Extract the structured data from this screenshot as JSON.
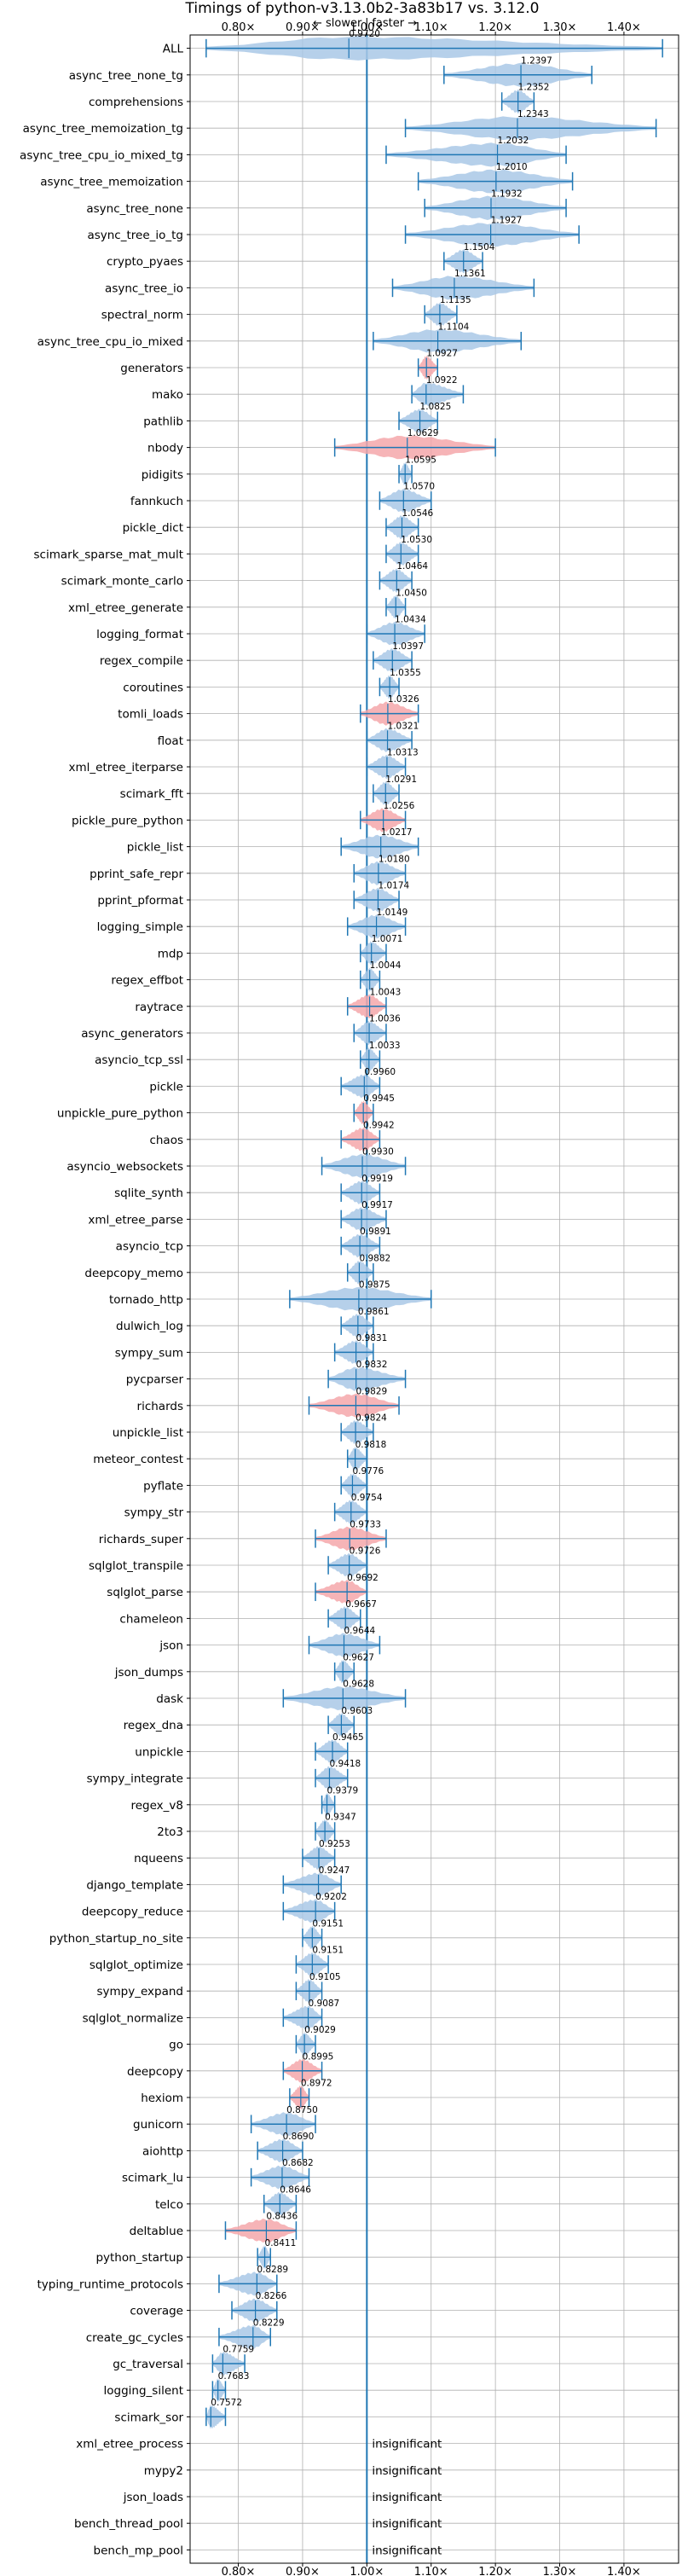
{
  "chart_data": {
    "type": "violin",
    "orientation": "horizontal",
    "title": "Timings of python-v3.13.0b2-3a83b17 vs. 3.12.0",
    "direction_labels": {
      "slower": "← slower",
      "separator": "|",
      "faster": "faster →"
    },
    "xlim": [
      0.725,
      1.485
    ],
    "reference": 1.0,
    "x_ticks": [
      {
        "value": 0.8,
        "label": "0.80×"
      },
      {
        "value": 0.9,
        "label": "0.90×"
      },
      {
        "value": 1.0,
        "label": "1.00×"
      },
      {
        "value": 1.1,
        "label": "1.10×"
      },
      {
        "value": 1.2,
        "label": "1.20×"
      },
      {
        "value": 1.3,
        "label": "1.30×"
      },
      {
        "value": 1.4,
        "label": "1.40×"
      }
    ],
    "insignificant_label": "insignificant",
    "colors": {
      "faster": "#a9c8e6",
      "slower": "#f4a7aa",
      "line": "#1f77b4",
      "grid": "#b0b0b0"
    },
    "benchmarks": [
      {
        "name": "ALL",
        "value": 0.972,
        "value_label": "0.9720",
        "min": 0.75,
        "max": 1.46,
        "status": "faster"
      },
      {
        "name": "async_tree_none_tg",
        "value": 1.2397,
        "value_label": "1.2397",
        "min": 1.12,
        "max": 1.35,
        "status": "faster"
      },
      {
        "name": "comprehensions",
        "value": 1.2352,
        "value_label": "1.2352",
        "min": 1.21,
        "max": 1.26,
        "status": "faster"
      },
      {
        "name": "async_tree_memoization_tg",
        "value": 1.2343,
        "value_label": "1.2343",
        "min": 1.06,
        "max": 1.45,
        "status": "faster"
      },
      {
        "name": "async_tree_cpu_io_mixed_tg",
        "value": 1.2032,
        "value_label": "1.2032",
        "min": 1.03,
        "max": 1.31,
        "status": "faster"
      },
      {
        "name": "async_tree_memoization",
        "value": 1.201,
        "value_label": "1.2010",
        "min": 1.08,
        "max": 1.32,
        "status": "faster"
      },
      {
        "name": "async_tree_none",
        "value": 1.1932,
        "value_label": "1.1932",
        "min": 1.09,
        "max": 1.31,
        "status": "faster"
      },
      {
        "name": "async_tree_io_tg",
        "value": 1.1927,
        "value_label": "1.1927",
        "min": 1.06,
        "max": 1.33,
        "status": "faster"
      },
      {
        "name": "crypto_pyaes",
        "value": 1.1504,
        "value_label": "1.1504",
        "min": 1.12,
        "max": 1.18,
        "status": "faster"
      },
      {
        "name": "async_tree_io",
        "value": 1.1361,
        "value_label": "1.1361",
        "min": 1.04,
        "max": 1.26,
        "status": "faster"
      },
      {
        "name": "spectral_norm",
        "value": 1.1135,
        "value_label": "1.1135",
        "min": 1.09,
        "max": 1.14,
        "status": "faster"
      },
      {
        "name": "async_tree_cpu_io_mixed",
        "value": 1.1104,
        "value_label": "1.1104",
        "min": 1.01,
        "max": 1.24,
        "status": "faster"
      },
      {
        "name": "generators",
        "value": 1.0927,
        "value_label": "1.0927",
        "min": 1.08,
        "max": 1.11,
        "status": "slower"
      },
      {
        "name": "mako",
        "value": 1.0922,
        "value_label": "1.0922",
        "min": 1.07,
        "max": 1.15,
        "status": "faster"
      },
      {
        "name": "pathlib",
        "value": 1.0825,
        "value_label": "1.0825",
        "min": 1.05,
        "max": 1.11,
        "status": "faster"
      },
      {
        "name": "nbody",
        "value": 1.0629,
        "value_label": "1.0629",
        "min": 0.95,
        "max": 1.2,
        "status": "slower"
      },
      {
        "name": "pidigits",
        "value": 1.0595,
        "value_label": "1.0595",
        "min": 1.05,
        "max": 1.07,
        "status": "faster"
      },
      {
        "name": "fannkuch",
        "value": 1.057,
        "value_label": "1.0570",
        "min": 1.02,
        "max": 1.1,
        "status": "faster"
      },
      {
        "name": "pickle_dict",
        "value": 1.0546,
        "value_label": "1.0546",
        "min": 1.03,
        "max": 1.08,
        "status": "faster"
      },
      {
        "name": "scimark_sparse_mat_mult",
        "value": 1.053,
        "value_label": "1.0530",
        "min": 1.03,
        "max": 1.08,
        "status": "faster"
      },
      {
        "name": "scimark_monte_carlo",
        "value": 1.0464,
        "value_label": "1.0464",
        "min": 1.02,
        "max": 1.07,
        "status": "faster"
      },
      {
        "name": "xml_etree_generate",
        "value": 1.045,
        "value_label": "1.0450",
        "min": 1.03,
        "max": 1.06,
        "status": "faster"
      },
      {
        "name": "logging_format",
        "value": 1.0434,
        "value_label": "1.0434",
        "min": 1.0,
        "max": 1.09,
        "status": "faster"
      },
      {
        "name": "regex_compile",
        "value": 1.0397,
        "value_label": "1.0397",
        "min": 1.01,
        "max": 1.07,
        "status": "faster"
      },
      {
        "name": "coroutines",
        "value": 1.0355,
        "value_label": "1.0355",
        "min": 1.02,
        "max": 1.05,
        "status": "faster"
      },
      {
        "name": "tomli_loads",
        "value": 1.0326,
        "value_label": "1.0326",
        "min": 0.99,
        "max": 1.08,
        "status": "slower"
      },
      {
        "name": "float",
        "value": 1.0321,
        "value_label": "1.0321",
        "min": 1.0,
        "max": 1.07,
        "status": "faster"
      },
      {
        "name": "xml_etree_iterparse",
        "value": 1.0313,
        "value_label": "1.0313",
        "min": 1.0,
        "max": 1.06,
        "status": "faster"
      },
      {
        "name": "scimark_fft",
        "value": 1.0291,
        "value_label": "1.0291",
        "min": 1.01,
        "max": 1.05,
        "status": "faster"
      },
      {
        "name": "pickle_pure_python",
        "value": 1.0256,
        "value_label": "1.0256",
        "min": 0.99,
        "max": 1.06,
        "status": "slower"
      },
      {
        "name": "pickle_list",
        "value": 1.0217,
        "value_label": "1.0217",
        "min": 0.96,
        "max": 1.08,
        "status": "faster"
      },
      {
        "name": "pprint_safe_repr",
        "value": 1.018,
        "value_label": "1.0180",
        "min": 0.98,
        "max": 1.06,
        "status": "faster"
      },
      {
        "name": "pprint_pformat",
        "value": 1.0174,
        "value_label": "1.0174",
        "min": 0.98,
        "max": 1.05,
        "status": "faster"
      },
      {
        "name": "logging_simple",
        "value": 1.0149,
        "value_label": "1.0149",
        "min": 0.97,
        "max": 1.06,
        "status": "faster"
      },
      {
        "name": "mdp",
        "value": 1.0071,
        "value_label": "1.0071",
        "min": 0.99,
        "max": 1.03,
        "status": "faster"
      },
      {
        "name": "regex_effbot",
        "value": 1.0044,
        "value_label": "1.0044",
        "min": 0.99,
        "max": 1.02,
        "status": "faster"
      },
      {
        "name": "raytrace",
        "value": 1.0043,
        "value_label": "1.0043",
        "min": 0.97,
        "max": 1.03,
        "status": "slower"
      },
      {
        "name": "async_generators",
        "value": 1.0036,
        "value_label": "1.0036",
        "min": 0.98,
        "max": 1.03,
        "status": "faster"
      },
      {
        "name": "asyncio_tcp_ssl",
        "value": 1.0033,
        "value_label": "1.0033",
        "min": 0.99,
        "max": 1.02,
        "status": "faster"
      },
      {
        "name": "pickle",
        "value": 0.996,
        "value_label": "0.9960",
        "min": 0.96,
        "max": 1.02,
        "status": "faster"
      },
      {
        "name": "unpickle_pure_python",
        "value": 0.9945,
        "value_label": "0.9945",
        "min": 0.98,
        "max": 1.01,
        "status": "slower"
      },
      {
        "name": "chaos",
        "value": 0.9942,
        "value_label": "0.9942",
        "min": 0.96,
        "max": 1.02,
        "status": "slower"
      },
      {
        "name": "asyncio_websockets",
        "value": 0.993,
        "value_label": "0.9930",
        "min": 0.93,
        "max": 1.06,
        "status": "faster"
      },
      {
        "name": "sqlite_synth",
        "value": 0.9919,
        "value_label": "0.9919",
        "min": 0.96,
        "max": 1.02,
        "status": "faster"
      },
      {
        "name": "xml_etree_parse",
        "value": 0.9917,
        "value_label": "0.9917",
        "min": 0.96,
        "max": 1.03,
        "status": "faster"
      },
      {
        "name": "asyncio_tcp",
        "value": 0.9891,
        "value_label": "0.9891",
        "min": 0.96,
        "max": 1.02,
        "status": "faster"
      },
      {
        "name": "deepcopy_memo",
        "value": 0.9882,
        "value_label": "0.9882",
        "min": 0.97,
        "max": 1.01,
        "status": "faster"
      },
      {
        "name": "tornado_http",
        "value": 0.9875,
        "value_label": "0.9875",
        "min": 0.88,
        "max": 1.1,
        "status": "faster"
      },
      {
        "name": "dulwich_log",
        "value": 0.9861,
        "value_label": "0.9861",
        "min": 0.96,
        "max": 1.01,
        "status": "faster"
      },
      {
        "name": "sympy_sum",
        "value": 0.9831,
        "value_label": "0.9831",
        "min": 0.95,
        "max": 1.01,
        "status": "faster"
      },
      {
        "name": "pycparser",
        "value": 0.9832,
        "value_label": "0.9832",
        "min": 0.94,
        "max": 1.06,
        "status": "faster"
      },
      {
        "name": "richards",
        "value": 0.9829,
        "value_label": "0.9829",
        "min": 0.91,
        "max": 1.05,
        "status": "slower"
      },
      {
        "name": "unpickle_list",
        "value": 0.9824,
        "value_label": "0.9824",
        "min": 0.96,
        "max": 1.01,
        "status": "faster"
      },
      {
        "name": "meteor_contest",
        "value": 0.9818,
        "value_label": "0.9818",
        "min": 0.97,
        "max": 1.0,
        "status": "faster"
      },
      {
        "name": "pyflate",
        "value": 0.9776,
        "value_label": "0.9776",
        "min": 0.96,
        "max": 1.0,
        "status": "faster"
      },
      {
        "name": "sympy_str",
        "value": 0.9754,
        "value_label": "0.9754",
        "min": 0.95,
        "max": 1.0,
        "status": "faster"
      },
      {
        "name": "richards_super",
        "value": 0.9733,
        "value_label": "0.9733",
        "min": 0.92,
        "max": 1.03,
        "status": "slower"
      },
      {
        "name": "sqlglot_transpile",
        "value": 0.9726,
        "value_label": "0.9726",
        "min": 0.94,
        "max": 1.0,
        "status": "faster"
      },
      {
        "name": "sqlglot_parse",
        "value": 0.9692,
        "value_label": "0.9692",
        "min": 0.92,
        "max": 1.0,
        "status": "slower"
      },
      {
        "name": "chameleon",
        "value": 0.9667,
        "value_label": "0.9667",
        "min": 0.94,
        "max": 0.99,
        "status": "faster"
      },
      {
        "name": "json",
        "value": 0.9644,
        "value_label": "0.9644",
        "min": 0.91,
        "max": 1.02,
        "status": "faster"
      },
      {
        "name": "json_dumps",
        "value": 0.9627,
        "value_label": "0.9627",
        "min": 0.95,
        "max": 0.98,
        "status": "faster"
      },
      {
        "name": "dask",
        "value": 0.9628,
        "value_label": "0.9628",
        "min": 0.87,
        "max": 1.06,
        "status": "faster"
      },
      {
        "name": "regex_dna",
        "value": 0.9603,
        "value_label": "0.9603",
        "min": 0.94,
        "max": 0.98,
        "status": "faster"
      },
      {
        "name": "unpickle",
        "value": 0.9465,
        "value_label": "0.9465",
        "min": 0.92,
        "max": 0.97,
        "status": "faster"
      },
      {
        "name": "sympy_integrate",
        "value": 0.9418,
        "value_label": "0.9418",
        "min": 0.92,
        "max": 0.97,
        "status": "faster"
      },
      {
        "name": "regex_v8",
        "value": 0.9379,
        "value_label": "0.9379",
        "min": 0.93,
        "max": 0.95,
        "status": "faster"
      },
      {
        "name": "2to3",
        "value": 0.9347,
        "value_label": "0.9347",
        "min": 0.92,
        "max": 0.95,
        "status": "faster"
      },
      {
        "name": "nqueens",
        "value": 0.9253,
        "value_label": "0.9253",
        "min": 0.9,
        "max": 0.95,
        "status": "faster"
      },
      {
        "name": "django_template",
        "value": 0.9247,
        "value_label": "0.9247",
        "min": 0.87,
        "max": 0.96,
        "status": "faster"
      },
      {
        "name": "deepcopy_reduce",
        "value": 0.9202,
        "value_label": "0.9202",
        "min": 0.87,
        "max": 0.95,
        "status": "faster"
      },
      {
        "name": "python_startup_no_site",
        "value": 0.9151,
        "value_label": "0.9151",
        "min": 0.9,
        "max": 0.93,
        "status": "faster"
      },
      {
        "name": "sqlglot_optimize",
        "value": 0.9151,
        "value_label": "0.9151",
        "min": 0.89,
        "max": 0.94,
        "status": "faster"
      },
      {
        "name": "sympy_expand",
        "value": 0.9105,
        "value_label": "0.9105",
        "min": 0.89,
        "max": 0.93,
        "status": "faster"
      },
      {
        "name": "sqlglot_normalize",
        "value": 0.9087,
        "value_label": "0.9087",
        "min": 0.87,
        "max": 0.93,
        "status": "faster"
      },
      {
        "name": "go",
        "value": 0.9029,
        "value_label": "0.9029",
        "min": 0.89,
        "max": 0.92,
        "status": "faster"
      },
      {
        "name": "deepcopy",
        "value": 0.8995,
        "value_label": "0.8995",
        "min": 0.87,
        "max": 0.93,
        "status": "slower"
      },
      {
        "name": "hexiom",
        "value": 0.8972,
        "value_label": "0.8972",
        "min": 0.88,
        "max": 0.91,
        "status": "slower"
      },
      {
        "name": "gunicorn",
        "value": 0.875,
        "value_label": "0.8750",
        "min": 0.82,
        "max": 0.92,
        "status": "faster"
      },
      {
        "name": "aiohttp",
        "value": 0.869,
        "value_label": "0.8690",
        "min": 0.83,
        "max": 0.9,
        "status": "faster"
      },
      {
        "name": "scimark_lu",
        "value": 0.8682,
        "value_label": "0.8682",
        "min": 0.82,
        "max": 0.91,
        "status": "faster"
      },
      {
        "name": "telco",
        "value": 0.8646,
        "value_label": "0.8646",
        "min": 0.84,
        "max": 0.89,
        "status": "faster"
      },
      {
        "name": "deltablue",
        "value": 0.8436,
        "value_label": "0.8436",
        "min": 0.78,
        "max": 0.89,
        "status": "slower"
      },
      {
        "name": "python_startup",
        "value": 0.8411,
        "value_label": "0.8411",
        "min": 0.83,
        "max": 0.85,
        "status": "faster"
      },
      {
        "name": "typing_runtime_protocols",
        "value": 0.8289,
        "value_label": "0.8289",
        "min": 0.77,
        "max": 0.86,
        "status": "faster"
      },
      {
        "name": "coverage",
        "value": 0.8266,
        "value_label": "0.8266",
        "min": 0.79,
        "max": 0.86,
        "status": "faster"
      },
      {
        "name": "create_gc_cycles",
        "value": 0.8229,
        "value_label": "0.8229",
        "min": 0.77,
        "max": 0.85,
        "status": "faster"
      },
      {
        "name": "gc_traversal",
        "value": 0.7759,
        "value_label": "0.7759",
        "min": 0.76,
        "max": 0.81,
        "status": "faster"
      },
      {
        "name": "logging_silent",
        "value": 0.7683,
        "value_label": "0.7683",
        "min": 0.76,
        "max": 0.78,
        "status": "faster"
      },
      {
        "name": "scimark_sor",
        "value": 0.7572,
        "value_label": "0.7572",
        "min": 0.75,
        "max": 0.78,
        "status": "faster"
      },
      {
        "name": "xml_etree_process",
        "value": null,
        "value_label": "",
        "min": null,
        "max": null,
        "status": "insignificant"
      },
      {
        "name": "mypy2",
        "value": null,
        "value_label": "",
        "min": null,
        "max": null,
        "status": "insignificant"
      },
      {
        "name": "json_loads",
        "value": null,
        "value_label": "",
        "min": null,
        "max": null,
        "status": "insignificant"
      },
      {
        "name": "bench_thread_pool",
        "value": null,
        "value_label": "",
        "min": null,
        "max": null,
        "status": "insignificant"
      },
      {
        "name": "bench_mp_pool",
        "value": null,
        "value_label": "",
        "min": null,
        "max": null,
        "status": "insignificant"
      }
    ]
  }
}
